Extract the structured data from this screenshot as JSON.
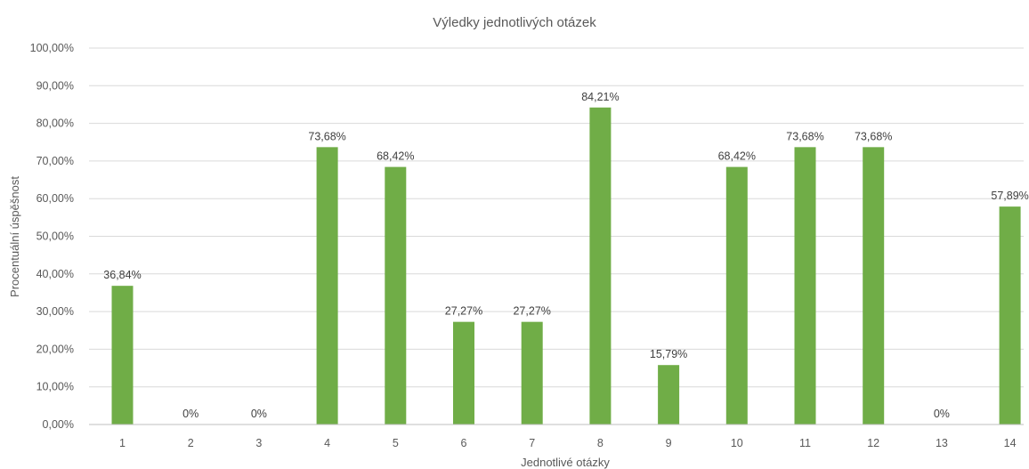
{
  "chart_data": {
    "type": "bar",
    "title": "Výledky jednotlivých otázek",
    "xlabel": "Jednotlivé otázky",
    "ylabel": "Procentuální úspěšnost",
    "categories": [
      "1",
      "2",
      "3",
      "4",
      "5",
      "6",
      "7",
      "8",
      "9",
      "10",
      "11",
      "12",
      "13",
      "14"
    ],
    "values": [
      36.84,
      0,
      0,
      73.68,
      68.42,
      27.27,
      27.27,
      84.21,
      15.79,
      68.42,
      73.68,
      73.68,
      0,
      57.89
    ],
    "data_labels": [
      "36,84%",
      "0%",
      "0%",
      "73,68%",
      "68,42%",
      "27,27%",
      "27,27%",
      "84,21%",
      "15,79%",
      "68,42%",
      "73,68%",
      "73,68%",
      "0%",
      "57,89%"
    ],
    "ylim": [
      0,
      100
    ],
    "yticks": [
      0,
      10,
      20,
      30,
      40,
      50,
      60,
      70,
      80,
      90,
      100
    ],
    "ytick_labels": [
      "0,00%",
      "10,00%",
      "20,00%",
      "30,00%",
      "40,00%",
      "50,00%",
      "60,00%",
      "70,00%",
      "80,00%",
      "90,00%",
      "100,00%"
    ],
    "grid": true,
    "legend": "none",
    "colors": {
      "bar": "#70ad47",
      "grid": "#d9d9d9",
      "axis": "#bfbfbf",
      "text": "#595959"
    }
  }
}
